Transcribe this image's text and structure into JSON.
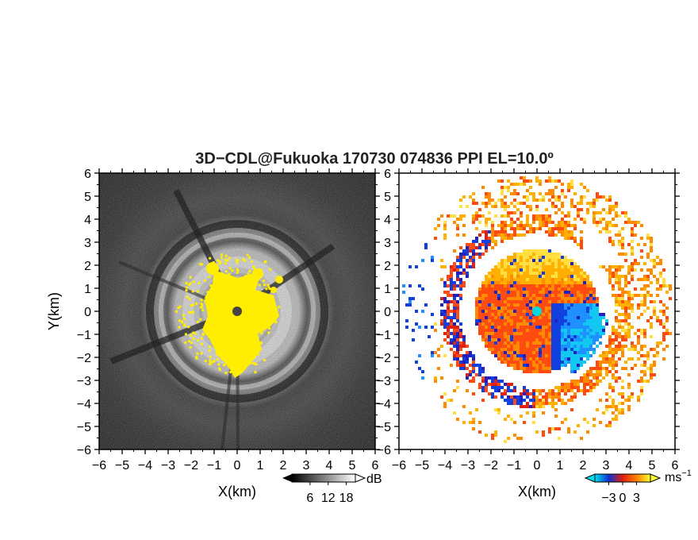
{
  "title": "3D−CDL@Fukuoka 170730 074836 PPI EL=10.0º",
  "chart_data": [
    {
      "type": "heatmap",
      "xlabel": "X(km)",
      "ylabel": "Y(km)",
      "xlim": [
        -6,
        6
      ],
      "ylim": [
        -6,
        6
      ],
      "xticks": [
        "−6",
        "−5",
        "−4",
        "−3",
        "−2",
        "−1",
        "0",
        "1",
        "2",
        "3",
        "4",
        "5",
        "6"
      ],
      "yticks": [
        "6",
        "5",
        "4",
        "3",
        "2",
        "1",
        "0",
        "−1",
        "−2",
        "−3",
        "−4",
        "−5",
        "−6"
      ],
      "colorbar": {
        "unit": "dB",
        "ticks": [
          "6",
          "12",
          "18"
        ],
        "tick_values": [
          6,
          12,
          18
        ],
        "range": [
          0,
          21
        ],
        "colormap": "grayscale"
      },
      "rings_km": [
        1.5,
        3.4
      ],
      "highlight_color": "#ffee00"
    },
    {
      "type": "heatmap",
      "xlabel": "X(km)",
      "xlim": [
        -6,
        6
      ],
      "ylim": [
        -6,
        6
      ],
      "xticks": [
        "−6",
        "−5",
        "−4",
        "−3",
        "−2",
        "−1",
        "0",
        "1",
        "2",
        "3",
        "4",
        "5",
        "6"
      ],
      "yticks": [
        "6",
        "5",
        "4",
        "3",
        "2",
        "1",
        "0",
        "−1",
        "−2",
        "−3",
        "−4",
        "−5",
        "−6"
      ],
      "colorbar": {
        "unit": "ms",
        "unit_exponent": "−1",
        "ticks": [
          "−3",
          "0",
          "3"
        ],
        "tick_values": [
          -3,
          0,
          3
        ],
        "range": [
          -6,
          6
        ],
        "colormap": "cyan-blue-red-orange-yellow"
      },
      "center_color": "#00dddd"
    }
  ]
}
